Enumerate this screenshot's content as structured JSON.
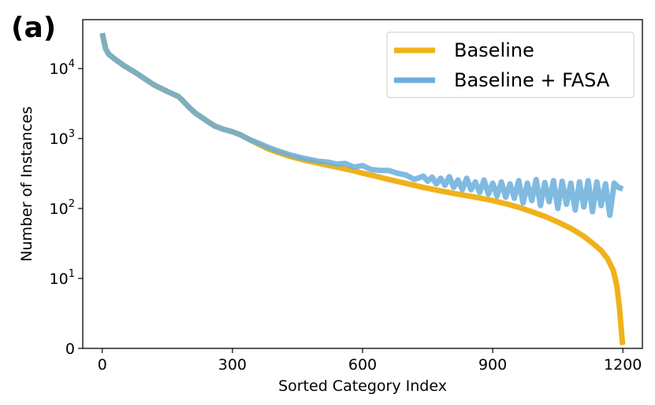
{
  "panel_label": "(a)",
  "chart_data": {
    "type": "line",
    "xlabel": "Sorted Category Index",
    "ylabel": "Number of Instances",
    "xlim": [
      -45,
      1245
    ],
    "yscale": "symlog",
    "ylim": [
      0,
      50000
    ],
    "x_ticks": [
      0,
      300,
      600,
      900,
      1200
    ],
    "y_ticks": [
      {
        "value": 0,
        "base": "0",
        "exp": ""
      },
      {
        "value": 10,
        "base": "10",
        "exp": "1"
      },
      {
        "value": 100,
        "base": "10",
        "exp": "2"
      },
      {
        "value": 1000,
        "base": "10",
        "exp": "3"
      },
      {
        "value": 10000,
        "base": "10",
        "exp": "4"
      }
    ],
    "grid": false,
    "legend_position": "top-right",
    "series": [
      {
        "name": "Baseline",
        "color": "#f0b21a",
        "x": [
          0,
          3,
          8,
          15,
          30,
          50,
          80,
          100,
          120,
          150,
          175,
          185,
          200,
          215,
          240,
          260,
          280,
          300,
          320,
          340,
          360,
          380,
          400,
          430,
          460,
          500,
          540,
          580,
          600,
          630,
          660,
          700,
          740,
          780,
          820,
          860,
          900,
          930,
          960,
          990,
          1020,
          1050,
          1080,
          1110,
          1130,
          1150,
          1165,
          1178,
          1186,
          1192,
          1196,
          1198,
          1199,
          1200
        ],
        "values": [
          32000,
          26000,
          19000,
          16000,
          13500,
          11000,
          8500,
          7000,
          5800,
          4700,
          4000,
          3500,
          2800,
          2300,
          1800,
          1500,
          1350,
          1250,
          1120,
          960,
          830,
          720,
          650,
          560,
          500,
          440,
          390,
          345,
          320,
          290,
          260,
          228,
          200,
          178,
          160,
          145,
          130,
          117,
          104,
          90,
          77,
          64,
          52,
          40,
          32,
          25,
          19,
          13,
          9,
          6,
          3,
          1.5,
          0.8,
          0.5
        ]
      },
      {
        "name": "Baseline + FASA",
        "color": "#6aaedc",
        "x": [
          0,
          3,
          8,
          15,
          30,
          50,
          80,
          100,
          120,
          150,
          175,
          185,
          200,
          215,
          240,
          260,
          280,
          300,
          320,
          340,
          360,
          380,
          400,
          430,
          460,
          500,
          520,
          540,
          560,
          580,
          600,
          620,
          640,
          660,
          680,
          700,
          720,
          740,
          750,
          760,
          770,
          780,
          790,
          800,
          810,
          820,
          830,
          840,
          850,
          860,
          870,
          880,
          890,
          900,
          910,
          920,
          930,
          940,
          950,
          960,
          970,
          980,
          990,
          1000,
          1010,
          1020,
          1030,
          1040,
          1050,
          1060,
          1070,
          1080,
          1090,
          1100,
          1110,
          1120,
          1130,
          1140,
          1150,
          1160,
          1170,
          1180,
          1190,
          1200
        ],
        "values": [
          32000,
          26000,
          19000,
          16000,
          13500,
          11000,
          8500,
          7000,
          5800,
          4700,
          4000,
          3500,
          2800,
          2300,
          1800,
          1500,
          1350,
          1250,
          1120,
          960,
          860,
          760,
          680,
          590,
          530,
          470,
          460,
          430,
          440,
          390,
          410,
          360,
          350,
          350,
          320,
          300,
          260,
          290,
          245,
          280,
          225,
          270,
          215,
          285,
          200,
          255,
          185,
          270,
          185,
          240,
          170,
          255,
          160,
          230,
          150,
          240,
          145,
          225,
          140,
          250,
          120,
          230,
          130,
          260,
          110,
          235,
          125,
          250,
          100,
          245,
          115,
          230,
          95,
          240,
          105,
          250,
          90,
          240,
          110,
          225,
          80,
          230,
          200,
          190
        ]
      }
    ]
  }
}
